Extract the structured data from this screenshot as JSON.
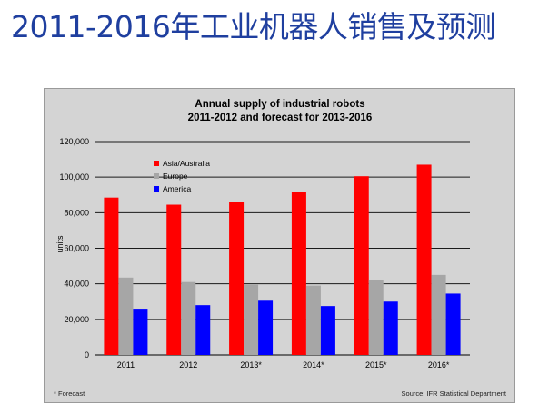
{
  "slide": {
    "title": "2011-2016年工业机器人销售及预测"
  },
  "chart_data": {
    "type": "bar",
    "title": "Annual supply of industrial robots",
    "subtitle": "2011-2012 and forecast for 2013-2016",
    "xlabel": "",
    "ylabel": "units",
    "categories": [
      "2011",
      "2012",
      "2013*",
      "2014*",
      "2015*",
      "2016*"
    ],
    "series": [
      {
        "name": "Asia/Australia",
        "color": "#ff0000",
        "values": [
          88500,
          84500,
          86000,
          91500,
          100500,
          107000
        ]
      },
      {
        "name": "Europe",
        "color": "#a6a6a6",
        "values": [
          43500,
          41000,
          39500,
          39000,
          42000,
          45000
        ]
      },
      {
        "name": "America",
        "color": "#0000ff",
        "values": [
          26000,
          28000,
          30500,
          27500,
          30000,
          34500
        ]
      }
    ],
    "ylim": [
      0,
      120000
    ],
    "yticks": [
      0,
      20000,
      40000,
      60000,
      80000,
      100000,
      120000
    ],
    "ytick_labels": [
      "0",
      "20,000",
      "40,000",
      "60,000",
      "80,000",
      "100,000",
      "120,000"
    ],
    "grid": true,
    "legend_position": "top-left",
    "footnote": "* Forecast",
    "source": "Source: IFR Statistical Department"
  }
}
